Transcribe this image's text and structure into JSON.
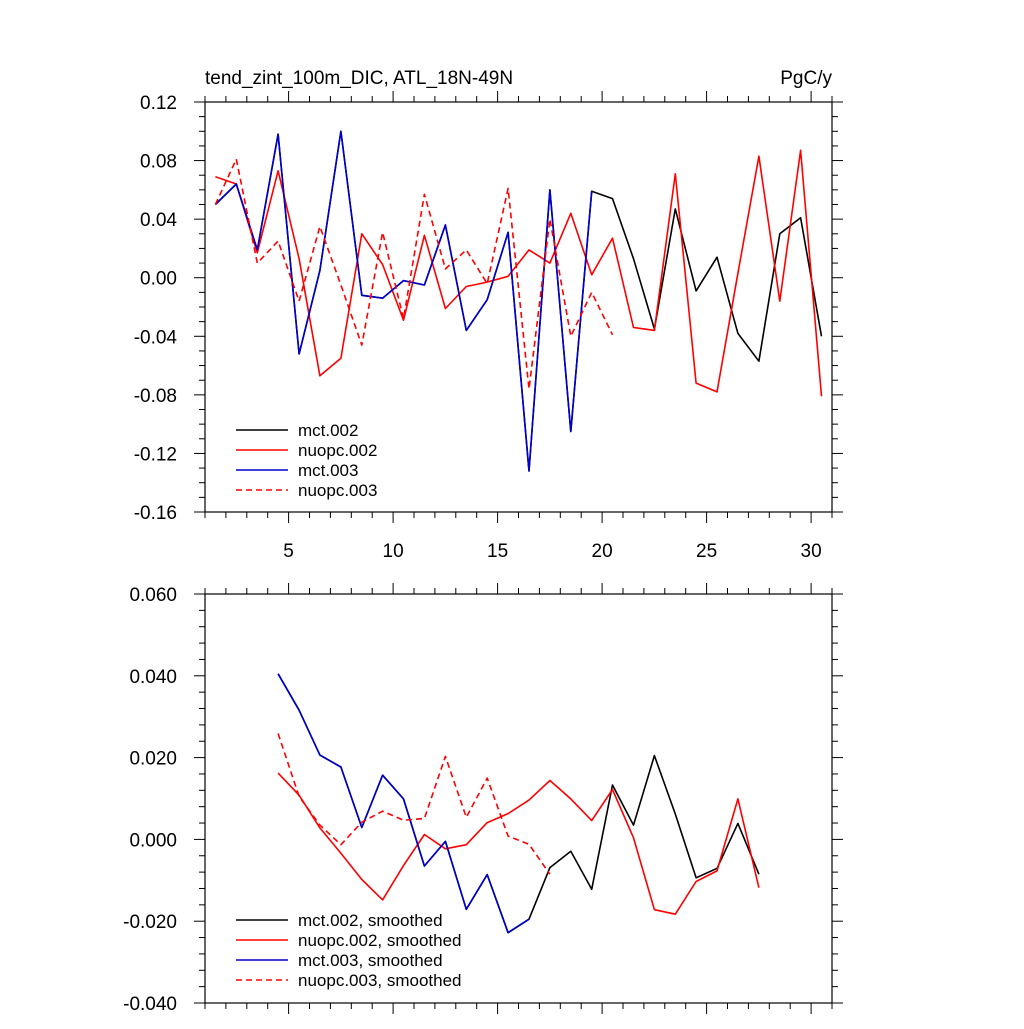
{
  "chart_data": [
    {
      "type": "line",
      "title": "tend_zint_100m_DIC, ATL_18N-49N",
      "units": "PgC/y",
      "xlabel": "",
      "ylabel": "",
      "xlim": [
        1,
        31
      ],
      "ylim": [
        -0.16,
        0.12
      ],
      "x_ticks": [
        5,
        10,
        15,
        20,
        25,
        30
      ],
      "x_tick_labels": [
        "5",
        "10",
        "15",
        "20",
        "25",
        "30"
      ],
      "y_ticks": [
        -0.16,
        -0.12,
        -0.08,
        -0.04,
        0.0,
        0.04,
        0.08,
        0.12
      ],
      "y_tick_labels": [
        "-0.16",
        "-0.12",
        "-0.08",
        "-0.04",
        "0.00",
        "0.04",
        "0.08",
        "0.12"
      ],
      "legend_position": "bottom-left",
      "series": [
        {
          "name": "mct.002",
          "color": "#000000",
          "dash": "solid",
          "x": [
            1.5,
            2.5,
            3.5,
            4.5,
            5.5,
            6.5,
            7.5,
            8.5,
            9.5,
            10.5,
            11.5,
            12.5,
            13.5,
            14.5,
            15.5,
            16.5,
            17.5,
            18.5,
            19.5,
            20.5,
            21.5,
            22.5,
            23.5,
            24.5,
            25.5,
            26.5,
            27.5,
            28.5,
            29.5,
            30.5
          ],
          "values": [
            0.05,
            0.064,
            0.019,
            0.098,
            -0.052,
            0.005,
            0.1,
            -0.012,
            -0.014,
            -0.002,
            -0.005,
            0.036,
            -0.036,
            -0.015,
            0.031,
            -0.132,
            0.06,
            -0.105,
            0.059,
            0.054,
            0.013,
            -0.035,
            0.047,
            -0.009,
            0.014,
            -0.038,
            -0.057,
            0.03,
            0.041,
            -0.04
          ]
        },
        {
          "name": "nuopc.002",
          "color": "#ff0000",
          "dash": "solid",
          "x": [
            1.5,
            2.5,
            3.5,
            4.5,
            5.5,
            6.5,
            7.5,
            8.5,
            9.5,
            10.5,
            11.5,
            12.5,
            13.5,
            14.5,
            15.5,
            16.5,
            17.5,
            18.5,
            19.5,
            20.5,
            21.5,
            22.5,
            23.5,
            24.5,
            25.5,
            26.5,
            27.5,
            28.5,
            29.5,
            30.5
          ],
          "values": [
            0.069,
            0.064,
            0.017,
            0.073,
            0.013,
            -0.067,
            -0.055,
            0.03,
            0.009,
            -0.029,
            0.029,
            -0.021,
            -0.006,
            -0.003,
            0.001,
            0.019,
            0.01,
            0.044,
            0.002,
            0.027,
            -0.034,
            -0.036,
            0.071,
            -0.072,
            -0.078,
            0.003,
            0.083,
            -0.016,
            0.087,
            -0.081
          ]
        },
        {
          "name": "mct.003",
          "color": "#0000cc",
          "dash": "solid",
          "x": [
            1.5,
            2.5,
            3.5,
            4.5,
            5.5,
            6.5,
            7.5,
            8.5,
            9.5,
            10.5,
            11.5,
            12.5,
            13.5,
            14.5,
            15.5,
            16.5,
            17.5,
            18.5,
            19.5
          ],
          "values": [
            0.05,
            0.064,
            0.019,
            0.098,
            -0.052,
            0.005,
            0.1,
            -0.012,
            -0.014,
            -0.002,
            -0.005,
            0.036,
            -0.036,
            -0.015,
            0.031,
            -0.132,
            0.06,
            -0.105,
            0.059
          ]
        },
        {
          "name": "nuopc.003",
          "color": "#ff0000",
          "dash": "dashed",
          "x": [
            1.5,
            2.5,
            3.5,
            4.5,
            5.5,
            6.5,
            7.5,
            8.5,
            9.5,
            10.5,
            11.5,
            12.5,
            13.5,
            14.5,
            15.5,
            16.5,
            17.5,
            18.5,
            19.5,
            20.5
          ],
          "values": [
            0.05,
            0.081,
            0.01,
            0.025,
            -0.016,
            0.035,
            -0.005,
            -0.046,
            0.031,
            -0.028,
            0.057,
            0.006,
            0.019,
            -0.004,
            0.061,
            -0.076,
            0.04,
            -0.04,
            -0.01,
            -0.039
          ]
        }
      ]
    },
    {
      "type": "line",
      "title": "",
      "xlabel": "",
      "ylabel": "",
      "xlim": [
        1,
        31
      ],
      "ylim": [
        -0.04,
        0.06
      ],
      "x_ticks": [
        5,
        10,
        15,
        20,
        25,
        30
      ],
      "x_tick_labels": [],
      "y_ticks": [
        -0.04,
        -0.02,
        0.0,
        0.02,
        0.04,
        0.06
      ],
      "y_tick_labels": [
        "-0.040",
        "-0.020",
        "0.000",
        "0.020",
        "0.040",
        "0.060"
      ],
      "legend_position": "bottom-left",
      "series": [
        {
          "name": "mct.002, smoothed",
          "color": "#000000",
          "dash": "solid",
          "x": [
            4.5,
            5.5,
            6.5,
            7.5,
            8.5,
            9.5,
            10.5,
            11.5,
            12.5,
            13.5,
            14.5,
            15.5,
            16.5,
            17.5,
            18.5,
            19.5,
            20.5,
            21.5,
            22.5,
            23.5,
            24.5,
            25.5,
            26.5,
            27.5
          ],
          "values": [
            0.0405,
            0.0316,
            0.0206,
            0.0177,
            0.0029,
            0.0157,
            0.0099,
            -0.0065,
            -0.0005,
            -0.0171,
            -0.0086,
            -0.0228,
            -0.0195,
            -0.0069,
            -0.0029,
            -0.0122,
            0.0133,
            0.0035,
            0.0205,
            0.0062,
            -0.0094,
            -0.0071,
            0.0039,
            -0.0085
          ]
        },
        {
          "name": "nuopc.002, smoothed",
          "color": "#ff0000",
          "dash": "solid",
          "x": [
            4.5,
            5.5,
            6.5,
            7.5,
            8.5,
            9.5,
            10.5,
            11.5,
            12.5,
            13.5,
            14.5,
            15.5,
            16.5,
            17.5,
            18.5,
            19.5,
            20.5,
            21.5,
            22.5,
            23.5,
            24.5,
            25.5,
            26.5,
            27.5
          ],
          "values": [
            0.0162,
            0.0108,
            0.0028,
            -0.0034,
            -0.0098,
            -0.0148,
            -0.0064,
            0.0012,
            -0.0023,
            -0.0013,
            0.0041,
            0.0063,
            0.0096,
            0.0144,
            0.0099,
            0.0046,
            0.0122,
            0.0004,
            -0.0172,
            -0.0183,
            -0.0103,
            -0.0077,
            0.0099,
            -0.0118
          ]
        },
        {
          "name": "mct.003, smoothed",
          "color": "#0000cc",
          "dash": "solid",
          "x": [
            4.5,
            5.5,
            6.5,
            7.5,
            8.5,
            9.5,
            10.5,
            11.5,
            12.5,
            13.5,
            14.5,
            15.5,
            16.5
          ],
          "values": [
            0.0405,
            0.0316,
            0.0206,
            0.0177,
            0.0029,
            0.0157,
            0.0099,
            -0.0065,
            -0.0005,
            -0.0171,
            -0.0086,
            -0.0228,
            -0.0195
          ]
        },
        {
          "name": "nuopc.003, smoothed",
          "color": "#ff0000",
          "dash": "dashed",
          "x": [
            4.5,
            5.5,
            6.5,
            7.5,
            8.5,
            9.5,
            10.5,
            11.5,
            12.5,
            13.5,
            14.5,
            15.5,
            16.5,
            17.5
          ],
          "values": [
            0.0259,
            0.0105,
            0.0035,
            -0.0013,
            0.0042,
            0.0069,
            0.0047,
            0.0051,
            0.0203,
            0.0054,
            0.015,
            0.0008,
            -0.0012,
            -0.0085
          ]
        }
      ]
    }
  ]
}
